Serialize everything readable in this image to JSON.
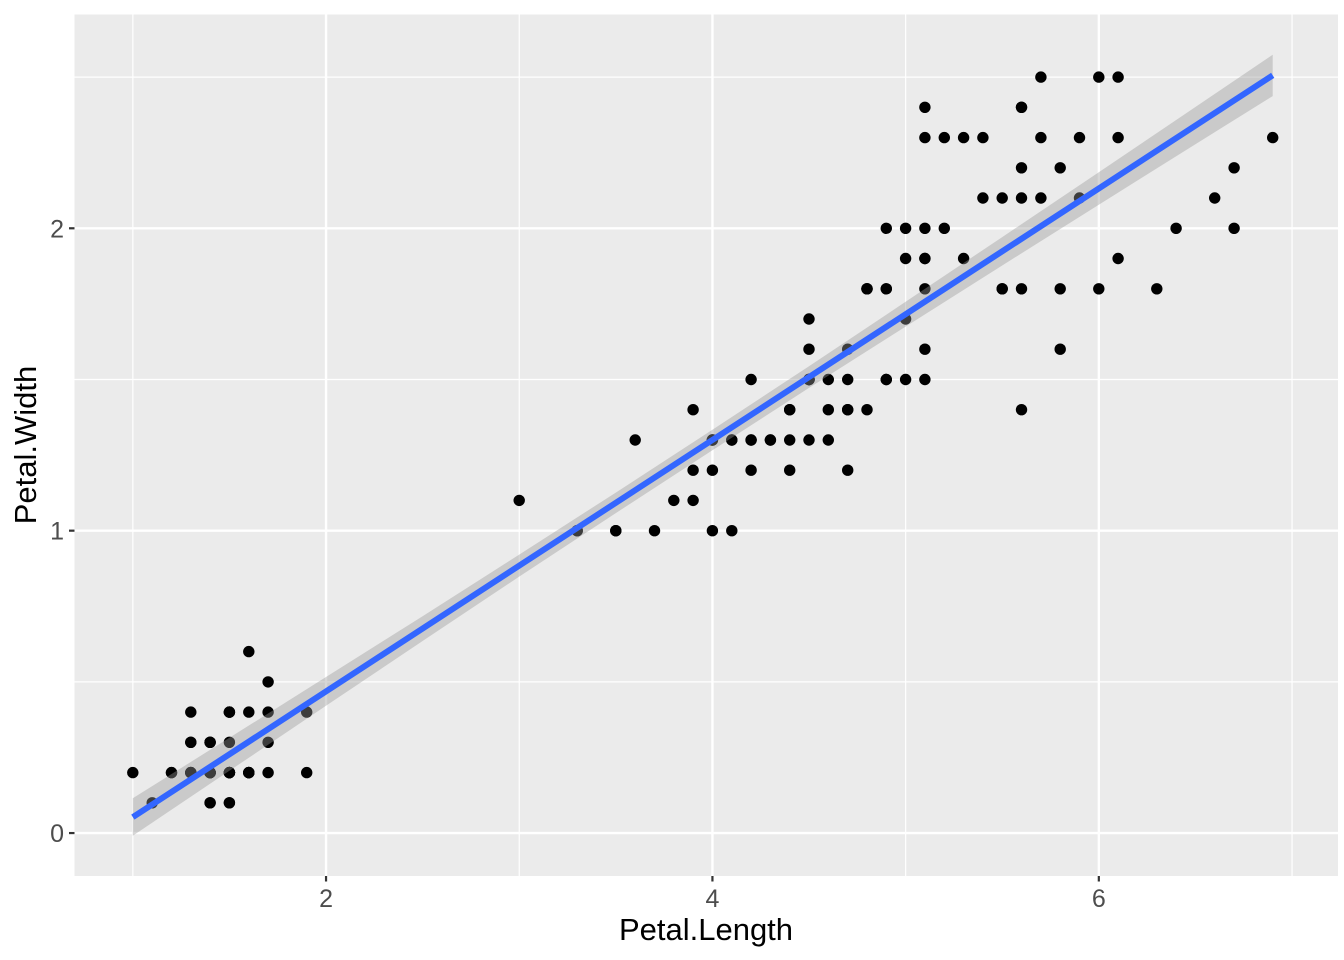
{
  "figure": {
    "kind": "ggplot2 scatterplot with linear smooth",
    "background": "#FFFFFF"
  },
  "chart_data": {
    "type": "scatter",
    "title": "",
    "xlabel": "Petal.Length",
    "ylabel": "Petal.Width",
    "x_domain": [
      0.698,
      7.238
    ],
    "y_domain": [
      -0.142,
      2.707
    ],
    "x_ticks": {
      "major": [
        2,
        4,
        6
      ],
      "minor": [
        1,
        3,
        5,
        7
      ]
    },
    "y_ticks": {
      "major": [
        0,
        1,
        2
      ],
      "minor": [
        0.5,
        1.5,
        2.5
      ]
    },
    "grid": "on",
    "legend_position": "none",
    "points": [
      [
        1.4,
        0.2
      ],
      [
        1.4,
        0.2
      ],
      [
        1.3,
        0.2
      ],
      [
        1.5,
        0.2
      ],
      [
        1.4,
        0.2
      ],
      [
        1.7,
        0.4
      ],
      [
        1.4,
        0.3
      ],
      [
        1.5,
        0.2
      ],
      [
        1.4,
        0.2
      ],
      [
        1.5,
        0.1
      ],
      [
        1.5,
        0.2
      ],
      [
        1.6,
        0.2
      ],
      [
        1.4,
        0.1
      ],
      [
        1.1,
        0.1
      ],
      [
        1.2,
        0.2
      ],
      [
        1.5,
        0.4
      ],
      [
        1.3,
        0.4
      ],
      [
        1.4,
        0.3
      ],
      [
        1.7,
        0.3
      ],
      [
        1.5,
        0.3
      ],
      [
        1.7,
        0.2
      ],
      [
        1.5,
        0.4
      ],
      [
        1.0,
        0.2
      ],
      [
        1.7,
        0.5
      ],
      [
        1.9,
        0.2
      ],
      [
        1.6,
        0.2
      ],
      [
        1.6,
        0.4
      ],
      [
        1.5,
        0.2
      ],
      [
        1.4,
        0.2
      ],
      [
        1.6,
        0.2
      ],
      [
        1.6,
        0.2
      ],
      [
        1.5,
        0.4
      ],
      [
        1.5,
        0.1
      ],
      [
        1.4,
        0.2
      ],
      [
        1.5,
        0.2
      ],
      [
        1.2,
        0.2
      ],
      [
        1.3,
        0.2
      ],
      [
        1.4,
        0.1
      ],
      [
        1.3,
        0.2
      ],
      [
        1.5,
        0.2
      ],
      [
        1.3,
        0.3
      ],
      [
        1.3,
        0.3
      ],
      [
        1.3,
        0.2
      ],
      [
        1.6,
        0.6
      ],
      [
        1.9,
        0.4
      ],
      [
        1.4,
        0.3
      ],
      [
        1.6,
        0.2
      ],
      [
        1.4,
        0.2
      ],
      [
        1.5,
        0.2
      ],
      [
        1.4,
        0.2
      ],
      [
        4.7,
        1.4
      ],
      [
        4.5,
        1.5
      ],
      [
        4.9,
        1.5
      ],
      [
        4.0,
        1.3
      ],
      [
        4.6,
        1.5
      ],
      [
        4.5,
        1.3
      ],
      [
        4.7,
        1.6
      ],
      [
        3.3,
        1.0
      ],
      [
        4.6,
        1.3
      ],
      [
        3.9,
        1.4
      ],
      [
        3.5,
        1.0
      ],
      [
        4.2,
        1.5
      ],
      [
        4.0,
        1.0
      ],
      [
        4.7,
        1.4
      ],
      [
        3.6,
        1.3
      ],
      [
        4.4,
        1.4
      ],
      [
        4.5,
        1.5
      ],
      [
        4.1,
        1.0
      ],
      [
        4.5,
        1.5
      ],
      [
        3.9,
        1.1
      ],
      [
        4.8,
        1.8
      ],
      [
        4.0,
        1.3
      ],
      [
        4.9,
        1.5
      ],
      [
        4.7,
        1.2
      ],
      [
        4.3,
        1.3
      ],
      [
        4.4,
        1.4
      ],
      [
        4.8,
        1.4
      ],
      [
        5.0,
        1.7
      ],
      [
        4.5,
        1.5
      ],
      [
        3.5,
        1.0
      ],
      [
        3.8,
        1.1
      ],
      [
        3.7,
        1.0
      ],
      [
        3.9,
        1.2
      ],
      [
        5.1,
        1.6
      ],
      [
        4.5,
        1.5
      ],
      [
        4.5,
        1.6
      ],
      [
        4.7,
        1.5
      ],
      [
        4.4,
        1.3
      ],
      [
        4.1,
        1.3
      ],
      [
        4.0,
        1.3
      ],
      [
        4.4,
        1.2
      ],
      [
        4.6,
        1.4
      ],
      [
        4.0,
        1.2
      ],
      [
        3.3,
        1.0
      ],
      [
        4.2,
        1.3
      ],
      [
        4.2,
        1.2
      ],
      [
        4.2,
        1.3
      ],
      [
        4.3,
        1.3
      ],
      [
        3.0,
        1.1
      ],
      [
        4.1,
        1.3
      ],
      [
        6.0,
        2.5
      ],
      [
        5.1,
        1.9
      ],
      [
        5.9,
        2.1
      ],
      [
        5.6,
        1.8
      ],
      [
        5.8,
        2.2
      ],
      [
        6.6,
        2.1
      ],
      [
        4.5,
        1.7
      ],
      [
        6.3,
        1.8
      ],
      [
        5.8,
        1.8
      ],
      [
        6.1,
        2.5
      ],
      [
        5.1,
        2.0
      ],
      [
        5.3,
        1.9
      ],
      [
        5.5,
        2.1
      ],
      [
        5.0,
        2.0
      ],
      [
        5.1,
        2.4
      ],
      [
        5.3,
        2.3
      ],
      [
        5.5,
        1.8
      ],
      [
        6.7,
        2.2
      ],
      [
        6.9,
        2.3
      ],
      [
        5.0,
        1.5
      ],
      [
        5.7,
        2.3
      ],
      [
        4.9,
        2.0
      ],
      [
        6.7,
        2.0
      ],
      [
        4.9,
        1.8
      ],
      [
        5.7,
        2.1
      ],
      [
        6.0,
        1.8
      ],
      [
        4.8,
        1.8
      ],
      [
        4.9,
        1.8
      ],
      [
        5.6,
        2.1
      ],
      [
        5.8,
        1.6
      ],
      [
        6.1,
        1.9
      ],
      [
        6.4,
        2.0
      ],
      [
        5.6,
        2.2
      ],
      [
        5.1,
        1.5
      ],
      [
        5.6,
        1.4
      ],
      [
        6.1,
        2.3
      ],
      [
        5.6,
        2.4
      ],
      [
        5.5,
        1.8
      ],
      [
        4.8,
        1.8
      ],
      [
        5.4,
        2.1
      ],
      [
        5.6,
        2.4
      ],
      [
        5.1,
        2.3
      ],
      [
        5.1,
        1.9
      ],
      [
        5.9,
        2.3
      ],
      [
        5.7,
        2.5
      ],
      [
        5.2,
        2.3
      ],
      [
        5.0,
        1.9
      ],
      [
        5.2,
        2.0
      ],
      [
        5.4,
        2.3
      ],
      [
        5.1,
        1.8
      ]
    ],
    "regression": {
      "method": "lm",
      "intercept": -0.3631,
      "slope": 0.4158,
      "x_min": 1.0,
      "x_max": 6.9
    },
    "ribbon": [
      [
        1.0,
        -0.009,
        0.115
      ],
      [
        1.5,
        0.206,
        0.315
      ],
      [
        2.0,
        0.421,
        0.516
      ],
      [
        2.5,
        0.635,
        0.717
      ],
      [
        3.0,
        0.848,
        0.921
      ],
      [
        3.5,
        1.058,
        1.126
      ],
      [
        4.0,
        1.266,
        1.334
      ],
      [
        4.5,
        1.472,
        1.544
      ],
      [
        5.0,
        1.675,
        1.757
      ],
      [
        5.5,
        1.877,
        1.971
      ],
      [
        6.0,
        2.078,
        2.185
      ],
      [
        6.5,
        2.278,
        2.401
      ],
      [
        6.9,
        2.437,
        2.574
      ]
    ]
  },
  "style": {
    "panel_bg": "#EBEBEB",
    "grid_color": "#FFFFFF",
    "point_color": "#000000",
    "line_color": "#3366FF",
    "ribbon_color": "#999999",
    "ribbon_opacity": 0.4,
    "tick_label_color": "#4D4D4D",
    "axis_title_color": "#000000",
    "tick_mark_color": "#333333"
  }
}
